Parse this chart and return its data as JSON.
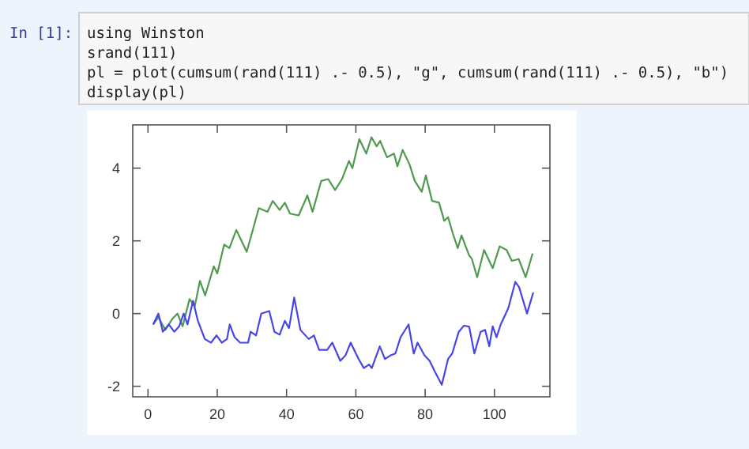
{
  "chart_data": {
    "type": "line",
    "xlim": [
      -4.4,
      116
    ],
    "ylim": [
      -2.29,
      5.19
    ],
    "xticks": [
      0,
      20,
      40,
      60,
      80,
      100
    ],
    "yticks": [
      -2,
      0,
      2,
      4
    ],
    "grid": false,
    "marker": "none",
    "line_style": "solid",
    "annotations": [
      "In [1]:",
      "using Winston",
      "srand(111)",
      "pl = plot(cumsum(rand(111) .- 0.5), \"g\", cumsum(rand(111) .- 0.5), \"b\")",
      "display(pl)"
    ],
    "series": [
      {
        "color": "#4f9a4f",
        "x": [
          1.5,
          3,
          5,
          7,
          8.5,
          10,
          12,
          13.5,
          15,
          16.5,
          19,
          20,
          22,
          23.5,
          25.5,
          28.5,
          32,
          34.5,
          36,
          38,
          39.5,
          41,
          43.5,
          46,
          47.5,
          50,
          52,
          54,
          56,
          58,
          59,
          61,
          63,
          64.5,
          66,
          67,
          69,
          71,
          72,
          73.5,
          75.5,
          77,
          79,
          80.2,
          82,
          84,
          85.5,
          86.6,
          88,
          89.4,
          90.5,
          92.7,
          93.5,
          95,
          97,
          99.5,
          101.5,
          103.5,
          105,
          107,
          109,
          111
        ],
        "values": [
          -0.3,
          -0.1,
          -0.45,
          -0.15,
          0.0,
          -0.35,
          0.4,
          0.2,
          0.9,
          0.5,
          1.3,
          1.1,
          1.9,
          1.8,
          2.3,
          1.7,
          2.9,
          2.8,
          3.1,
          2.85,
          3.05,
          2.75,
          2.7,
          3.25,
          2.8,
          3.65,
          3.7,
          3.4,
          3.7,
          4.2,
          4.0,
          4.8,
          4.4,
          4.85,
          4.6,
          4.75,
          4.3,
          4.4,
          4.05,
          4.5,
          4.1,
          3.65,
          3.35,
          3.8,
          3.1,
          3.05,
          2.55,
          2.65,
          2.2,
          1.8,
          2.15,
          1.6,
          1.5,
          1.0,
          1.75,
          1.25,
          1.85,
          1.75,
          1.45,
          1.5,
          1.0,
          1.65
        ]
      },
      {
        "color": "#4646e6",
        "x": [
          1.5,
          3,
          4.3,
          6,
          7.6,
          9,
          10.3,
          11.4,
          13,
          14.4,
          16.4,
          18.2,
          19.8,
          21.3,
          22.8,
          23.6,
          25,
          26.6,
          28.9,
          29.6,
          31.2,
          32.7,
          35,
          36.5,
          38,
          39.5,
          40.7,
          42.2,
          44,
          46.4,
          47.9,
          49.4,
          51.7,
          53.2,
          55.5,
          57,
          58.5,
          60.8,
          62.3,
          63.8,
          64.6,
          66.9,
          68.4,
          70,
          71.4,
          72.9,
          75.2,
          76.7,
          77.8,
          79.8,
          81.3,
          82.8,
          84.8,
          86.6,
          87.8,
          89.7,
          91.2,
          92.7,
          94.2,
          96,
          97.3,
          98.5,
          99.5,
          100.6,
          101.8,
          104,
          106,
          107.1,
          109.4,
          111.2
        ],
        "values": [
          -0.3,
          0.0,
          -0.5,
          -0.3,
          -0.5,
          -0.35,
          0.0,
          -0.3,
          0.35,
          -0.2,
          -0.7,
          -0.8,
          -0.6,
          -0.8,
          -0.7,
          -0.3,
          -0.65,
          -0.8,
          -0.8,
          -0.5,
          -0.6,
          0.0,
          0.07,
          -0.5,
          -0.58,
          -0.2,
          -0.4,
          0.44,
          -0.45,
          -0.7,
          -0.6,
          -1.0,
          -1.0,
          -0.8,
          -1.3,
          -1.15,
          -0.8,
          -1.25,
          -1.5,
          -1.4,
          -1.5,
          -0.9,
          -1.25,
          -1.15,
          -1.1,
          -0.65,
          -0.3,
          -1.1,
          -0.8,
          -1.15,
          -1.3,
          -1.6,
          -1.96,
          -1.25,
          -1.1,
          -0.5,
          -0.33,
          -0.36,
          -1.1,
          -0.5,
          -0.45,
          -0.9,
          -0.35,
          -0.65,
          -0.3,
          0.15,
          0.87,
          0.73,
          0.0,
          0.58
        ]
      }
    ]
  }
}
